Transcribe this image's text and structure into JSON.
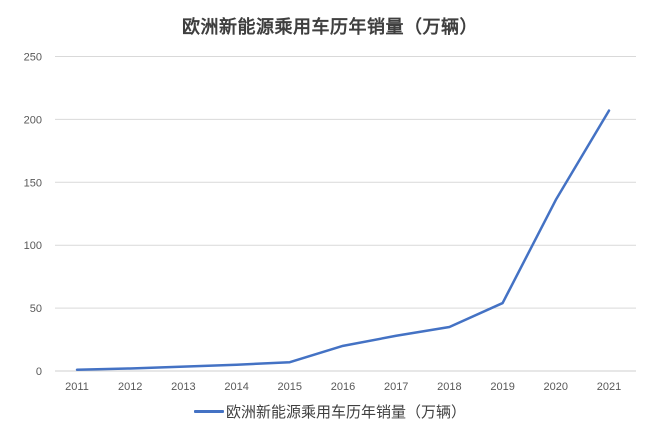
{
  "page": {
    "title": "欧洲新能源乘用车历年销量（万辆）"
  },
  "legend": {
    "label": "欧洲新能源乘用车历年销量（万辆）"
  },
  "colors": {
    "line": "#4472C4",
    "gridline": "#D9D9D9",
    "axis_line": "#CFCFCF",
    "tick_label": "#595959",
    "title_text": "#3F3F3F",
    "legend_text": "#404040",
    "background": "#FFFFFF"
  },
  "chart_data": {
    "type": "line",
    "title": "欧洲新能源乘用车历年销量（万辆）",
    "x": [
      "2011",
      "2012",
      "2013",
      "2014",
      "2015",
      "2016",
      "2017",
      "2018",
      "2019",
      "2020",
      "2021"
    ],
    "series": [
      {
        "name": "欧洲新能源乘用车历年销量（万辆）",
        "values": [
          1,
          2,
          3.5,
          5,
          7,
          20,
          28,
          35,
          54,
          136,
          207
        ]
      }
    ],
    "xlabel": "",
    "ylabel": "",
    "ylim": [
      0,
      250
    ],
    "yticks": [
      0,
      50,
      100,
      150,
      200,
      250
    ],
    "grid": "horizontal",
    "legend_position": "bottom-center"
  }
}
